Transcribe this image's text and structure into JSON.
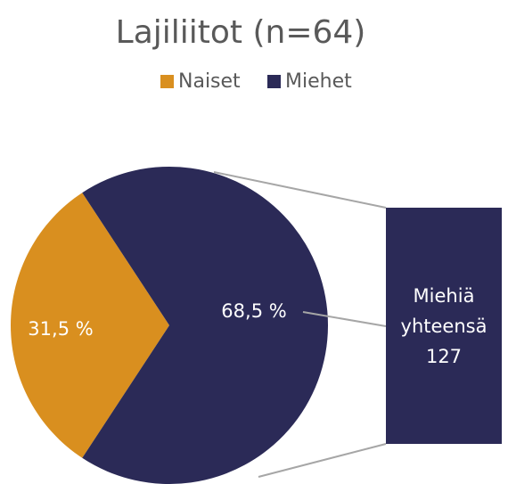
{
  "chart_data": {
    "type": "pie",
    "title": "Lajiliitot (n=64)",
    "categories": [
      "Naiset",
      "Miehet"
    ],
    "values": [
      31.5,
      68.5
    ],
    "value_labels": [
      "31,5 %",
      "68,5 %"
    ],
    "colors": [
      "#d98f1f",
      "#2b2a57"
    ],
    "legend": "top",
    "annotation": {
      "lines": [
        "Miehiä",
        "yhteensä",
        "127"
      ]
    }
  }
}
